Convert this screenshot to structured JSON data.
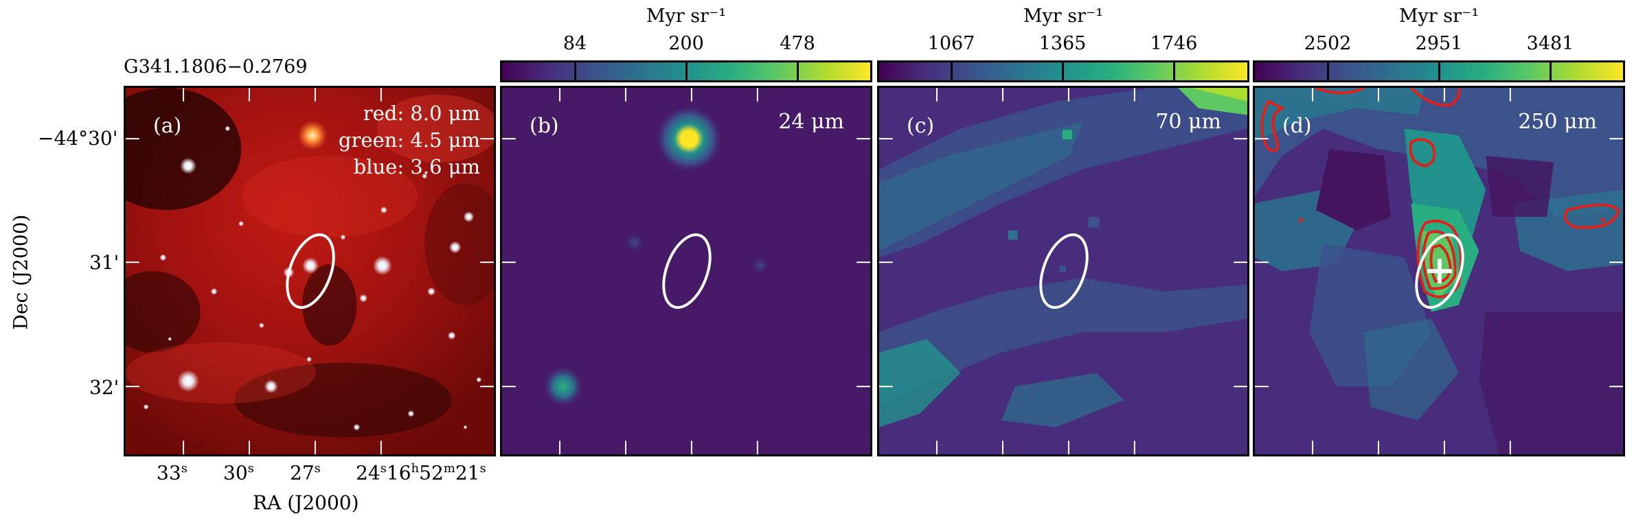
{
  "source_name": "G341.1806−0.2769",
  "axes": {
    "xlabel": "RA (J2000)",
    "ylabel": "Dec (J2000)",
    "dec_ticks": [
      "−44°30'",
      "31'",
      "32'"
    ],
    "ra_ticks": [
      "33",
      "30",
      "27",
      "24",
      "16",
      "52",
      "21"
    ]
  },
  "panels": [
    {
      "label": "(a)",
      "lines": [
        "red: 8.0 μm",
        "green: 4.5 μm",
        "blue: 3.6 μm"
      ]
    },
    {
      "label": "(b)",
      "wavelength": "24 μm",
      "unit": "Myr sr⁻¹",
      "ticks": [
        "84",
        "200",
        "478"
      ]
    },
    {
      "label": "(c)",
      "wavelength": "70 μm",
      "unit": "Myr sr⁻¹",
      "ticks": [
        "1067",
        "1365",
        "1746"
      ]
    },
    {
      "label": "(d)",
      "wavelength": "250 μm",
      "unit": "Myr sr⁻¹",
      "ticks": [
        "2502",
        "2951",
        "3481"
      ]
    }
  ],
  "colors": {
    "viridis_dark": "#440154",
    "viridis_mid": "#21918c",
    "viridis_yellow": "#fde725",
    "contour": "#e0201a",
    "ellipse": "#ffffff"
  }
}
